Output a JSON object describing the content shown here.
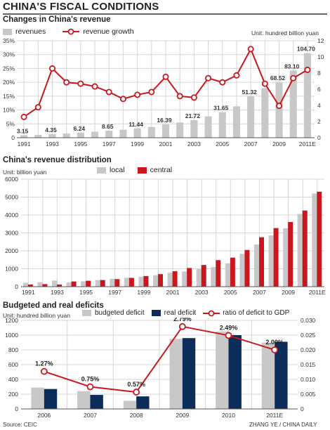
{
  "title": "CHINA'S FISCAL CONDITIONS",
  "colors": {
    "grey": "#c8c8c8",
    "red": "#c8171e",
    "navy": "#0c2d5a",
    "grid": "#d6d6d6"
  },
  "source": "Source: CEIC",
  "credit": "ZHANG YE / CHINA DAILY",
  "chart_data": [
    {
      "type": "bar",
      "title": "Changes in China's revenue",
      "unit": "Unit: hundred billion yuan",
      "legend": [
        "revenues",
        "revenue growth"
      ],
      "x": [
        "1991",
        "1992",
        "1993",
        "1994",
        "1995",
        "1996",
        "1997",
        "1998",
        "1999",
        "2000",
        "2001",
        "2002",
        "2003",
        "2004",
        "2005",
        "2006",
        "2007",
        "2008",
        "2009",
        "2010",
        "2011E"
      ],
      "x_tick_labels": [
        "1991",
        "1993",
        "1995",
        "1997",
        "1999",
        "2001",
        "2003",
        "2005",
        "2007",
        "2009",
        "2011E"
      ],
      "series": [
        {
          "name": "revenues",
          "axis": "right",
          "ylim": [
            0,
            12
          ],
          "values": [
            0.315,
            0.35,
            0.435,
            0.52,
            0.624,
            0.74,
            0.865,
            0.99,
            1.144,
            1.34,
            1.639,
            1.89,
            2.172,
            2.64,
            3.165,
            3.88,
            5.132,
            6.13,
            6.852,
            8.31,
            10.47
          ],
          "labels": {
            "0": "3.15",
            "2": "4.35",
            "4": "6.24",
            "6": "8.65",
            "8": "11.44",
            "10": "16.39",
            "12": "21.72",
            "14": "31.65",
            "16": "51.32",
            "18": "68.52",
            "19": "83.10",
            "20": "104.70"
          }
        },
        {
          "name": "revenue growth",
          "axis": "left",
          "ylim": [
            0,
            0.35
          ],
          "values": [
            0.075,
            0.11,
            0.25,
            0.2,
            0.195,
            0.185,
            0.165,
            0.14,
            0.155,
            0.165,
            0.22,
            0.15,
            0.145,
            0.215,
            0.2,
            0.225,
            0.32,
            0.195,
            0.115,
            0.215,
            0.245
          ]
        }
      ],
      "left_ticks": [
        "0",
        "5%",
        "10%",
        "15%",
        "20%",
        "25%",
        "30%",
        "35%"
      ],
      "right_ticks": [
        "0",
        "2",
        "4",
        "6",
        "8",
        "10",
        "12"
      ]
    },
    {
      "type": "bar",
      "title": "China's revenue distribution",
      "unit": "Unit: billion yuan",
      "legend": [
        "local",
        "central"
      ],
      "x": [
        "1991",
        "1992",
        "1993",
        "1994",
        "1995",
        "1996",
        "1997",
        "1998",
        "1999",
        "2000",
        "2001",
        "2002",
        "2003",
        "2004",
        "2005",
        "2006",
        "2007",
        "2008",
        "2009",
        "2010",
        "2011E"
      ],
      "x_tick_labels": [
        "1991",
        "1993",
        "1995",
        "1997",
        "1999",
        "2001",
        "2003",
        "2005",
        "2007",
        "2009",
        "2011E"
      ],
      "ylim": [
        0,
        6000
      ],
      "y_ticks": [
        "0",
        "1000",
        "2000",
        "3000",
        "4000",
        "5000",
        "6000"
      ],
      "series": [
        {
          "name": "local",
          "values": [
            220,
            250,
            340,
            230,
            300,
            370,
            440,
            500,
            560,
            640,
            780,
            850,
            980,
            1090,
            1300,
            1830,
            2350,
            2860,
            3260,
            4060,
            5200
          ]
        },
        {
          "name": "central",
          "values": [
            120,
            140,
            120,
            290,
            330,
            370,
            420,
            490,
            590,
            700,
            860,
            1040,
            1210,
            1480,
            1620,
            2050,
            2760,
            3270,
            3610,
            4250,
            5300
          ]
        }
      ]
    },
    {
      "type": "bar",
      "title": "Budgeted and real deficits",
      "unit": "Unit: hundred billion yuan",
      "legend": [
        "budgeted deficit",
        "real deficit",
        "ratio of deficit to GDP"
      ],
      "categories": [
        "2006",
        "2007",
        "2008",
        "2009",
        "2010",
        "2011E"
      ],
      "ylim_left": [
        0,
        1200
      ],
      "ylim_right": [
        0,
        0.03
      ],
      "left_ticks": [
        "0",
        "200",
        "400",
        "600",
        "800",
        "1000",
        "1200"
      ],
      "right_ticks": [
        "0",
        "0.005",
        "0.010",
        "0.015",
        "0.020",
        "0.025",
        "0.030"
      ],
      "series": [
        {
          "name": "budgeted deficit",
          "values": [
            290,
            240,
            110,
            950,
            1050,
            900
          ]
        },
        {
          "name": "real deficit",
          "values": [
            270,
            190,
            170,
            960,
            1000,
            910
          ]
        },
        {
          "name": "ratio of deficit to GDP",
          "axis": "right",
          "values": [
            0.0127,
            0.0075,
            0.0057,
            0.0279,
            0.0249,
            0.02
          ],
          "labels": [
            "1.27%",
            "0.75%",
            "0.57%",
            "2.79%",
            "2.49%",
            "2.00%"
          ]
        }
      ]
    }
  ]
}
